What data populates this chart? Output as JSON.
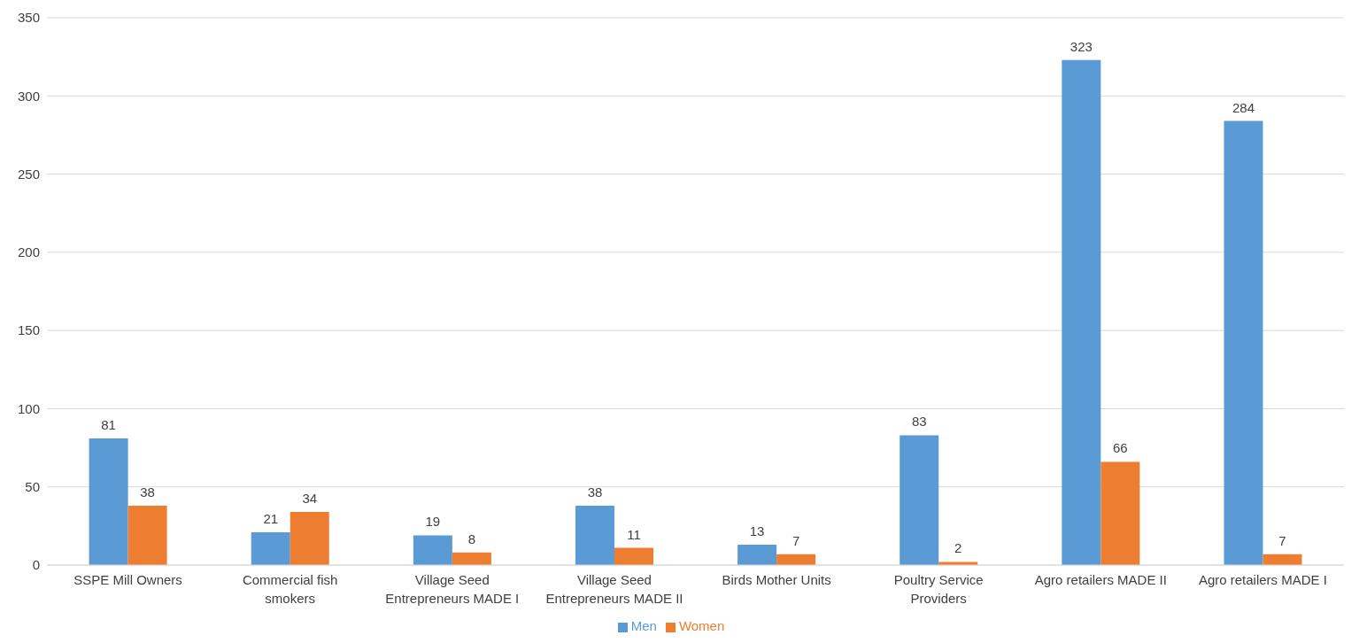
{
  "chart_data": {
    "type": "bar",
    "categories": [
      "SSPE Mill Owners",
      "Commercial fish smokers",
      "Village Seed Entrepreneurs MADE I",
      "Village Seed Entrepreneurs MADE II",
      "Birds Mother Units",
      "Poultry Service Providers",
      "Agro retailers MADE II",
      "Agro retailers MADE I"
    ],
    "series": [
      {
        "name": "Men",
        "color": "#5b9bd5",
        "values": [
          81,
          21,
          19,
          38,
          13,
          83,
          323,
          284
        ]
      },
      {
        "name": "Women",
        "color": "#ed7d31",
        "values": [
          38,
          34,
          8,
          11,
          7,
          2,
          66,
          7
        ]
      }
    ],
    "ylim": [
      0,
      350
    ],
    "yticks": [
      0,
      50,
      100,
      150,
      200,
      250,
      300,
      350
    ],
    "grid": "y",
    "legend": "bottom",
    "data_labels": true
  }
}
